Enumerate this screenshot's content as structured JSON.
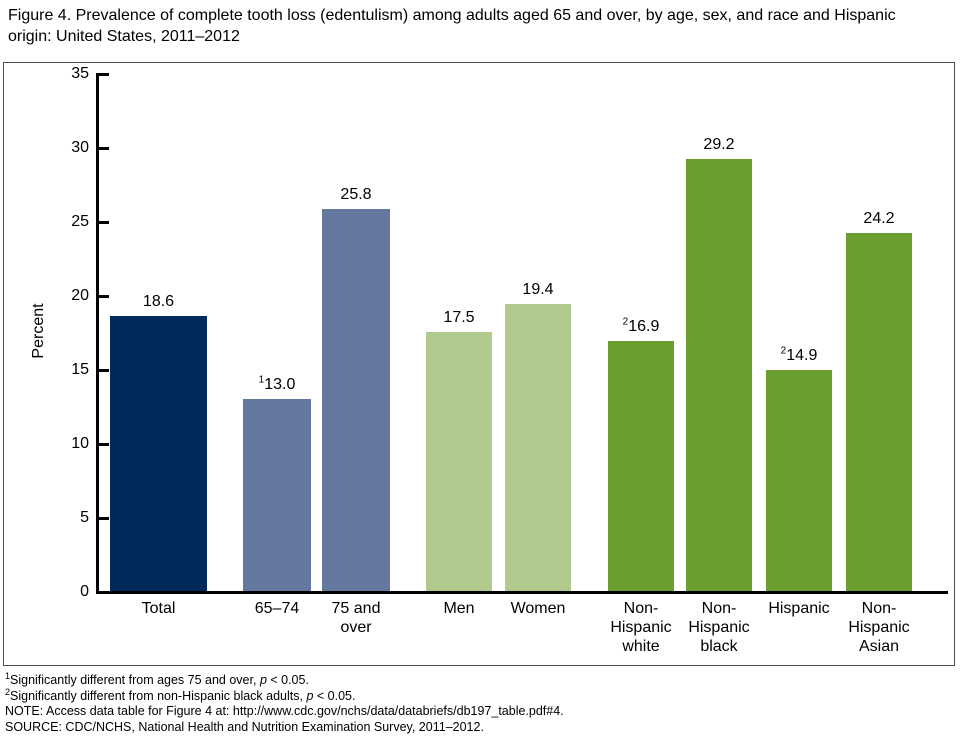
{
  "figure": {
    "title": "Figure 4. Prevalence of complete tooth loss (edentulism) among adults aged 65 and over, by age, sex, and race and Hispanic origin: United States, 2011–2012"
  },
  "chart_data": {
    "type": "bar",
    "title": "Prevalence of complete tooth loss (edentulism) among adults aged 65 and over, by age, sex, and race and Hispanic origin: United States, 2011–2012",
    "xlabel": "",
    "ylabel": "Percent",
    "ylim": [
      0,
      35
    ],
    "ytick_step": 5,
    "yticks": [
      0,
      5,
      10,
      15,
      20,
      25,
      30,
      35
    ],
    "grid": false,
    "legend": "none",
    "categories": [
      "Total",
      "65–74",
      "75 and over",
      "Men",
      "Women",
      "Non-Hispanic white",
      "Non-Hispanic black",
      "Hispanic",
      "Non-Hispanic Asian"
    ],
    "values": [
      18.6,
      13.0,
      25.8,
      17.5,
      19.4,
      16.9,
      29.2,
      14.9,
      24.2
    ],
    "bars": [
      {
        "category": "Total",
        "label_lines": [
          "Total"
        ],
        "value": 18.6,
        "value_label": "18.6",
        "sup": "",
        "group": "total",
        "color": "#002a5c"
      },
      {
        "category": "65–74",
        "label_lines": [
          "65–74"
        ],
        "value": 13.0,
        "value_label": "13.0",
        "sup": "1",
        "group": "age",
        "color": "#64779e"
      },
      {
        "category": "75 and over",
        "label_lines": [
          "75 and",
          "over"
        ],
        "value": 25.8,
        "value_label": "25.8",
        "sup": "",
        "group": "age",
        "color": "#64779e"
      },
      {
        "category": "Men",
        "label_lines": [
          "Men"
        ],
        "value": 17.5,
        "value_label": "17.5",
        "sup": "",
        "group": "sex",
        "color": "#b0ca8e"
      },
      {
        "category": "Women",
        "label_lines": [
          "Women"
        ],
        "value": 19.4,
        "value_label": "19.4",
        "sup": "",
        "group": "sex",
        "color": "#b0ca8e"
      },
      {
        "category": "Non-Hispanic white",
        "label_lines": [
          "Non-",
          "Hispanic",
          "white"
        ],
        "value": 16.9,
        "value_label": "16.9",
        "sup": "2",
        "group": "race",
        "color": "#699f31"
      },
      {
        "category": "Non-Hispanic black",
        "label_lines": [
          "Non-",
          "Hispanic",
          "black"
        ],
        "value": 29.2,
        "value_label": "29.2",
        "sup": "",
        "group": "race",
        "color": "#699f31"
      },
      {
        "category": "Hispanic",
        "label_lines": [
          "Hispanic"
        ],
        "value": 14.9,
        "value_label": "14.9",
        "sup": "2",
        "group": "race",
        "color": "#699f31"
      },
      {
        "category": "Non-Hispanic Asian",
        "label_lines": [
          "Non-",
          "Hispanic",
          "Asian"
        ],
        "value": 24.2,
        "value_label": "24.2",
        "sup": "",
        "group": "race",
        "color": "#699f31"
      }
    ],
    "group_colors": {
      "total": "#002a5c",
      "age": "#64779e",
      "sex": "#b0ca8e",
      "race": "#699f31"
    },
    "axis_color": "#000000"
  },
  "footnotes": [
    {
      "segments": [
        {
          "style": "sup",
          "text": "1"
        },
        {
          "style": "",
          "text": "Significantly different from ages 75 and over, "
        },
        {
          "style": "i",
          "text": "p"
        },
        {
          "style": "",
          "text": " < 0.05."
        }
      ]
    },
    {
      "segments": [
        {
          "style": "sup",
          "text": "2"
        },
        {
          "style": "",
          "text": "Significantly different from non-Hispanic black adults, "
        },
        {
          "style": "i",
          "text": "p"
        },
        {
          "style": "",
          "text": " < 0.05."
        }
      ]
    },
    {
      "segments": [
        {
          "style": "",
          "text": "NOTE: Access data table for Figure 4 at: http://www.cdc.gov/nchs/data/databriefs/db197_table.pdf#4."
        }
      ]
    },
    {
      "segments": [
        {
          "style": "",
          "text": "SOURCE: CDC/NCHS, National Health and Nutrition Examination Survey, 2011–2012."
        }
      ]
    }
  ]
}
